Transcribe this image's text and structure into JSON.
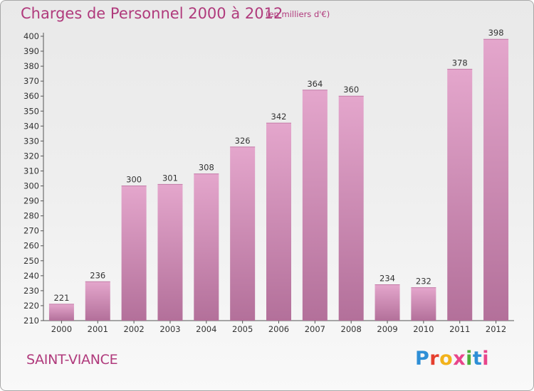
{
  "chart_data": {
    "type": "bar",
    "title": "Charges de Personnel 2000 à 2012",
    "subtitle": "(en milliers d'€)",
    "categories": [
      "2000",
      "2001",
      "2002",
      "2003",
      "2004",
      "2005",
      "2006",
      "2007",
      "2008",
      "2009",
      "2010",
      "2011",
      "2012"
    ],
    "values": [
      221,
      236,
      300,
      301,
      308,
      326,
      342,
      364,
      360,
      234,
      232,
      378,
      398
    ],
    "ylim": [
      210,
      400
    ],
    "ytick_step": 10,
    "grid": false,
    "bar_color": "#d88ab8"
  },
  "footer": {
    "commune": "SAINT-VIANCE"
  },
  "logo": {
    "letters": [
      "P",
      "r",
      "o",
      "x",
      "i",
      "t",
      "i"
    ],
    "colors": [
      "#2e8fd6",
      "#e53f2e",
      "#f2b21b",
      "#e8458b",
      "#4cae3a",
      "#2e8fd6",
      "#e8458b"
    ]
  }
}
